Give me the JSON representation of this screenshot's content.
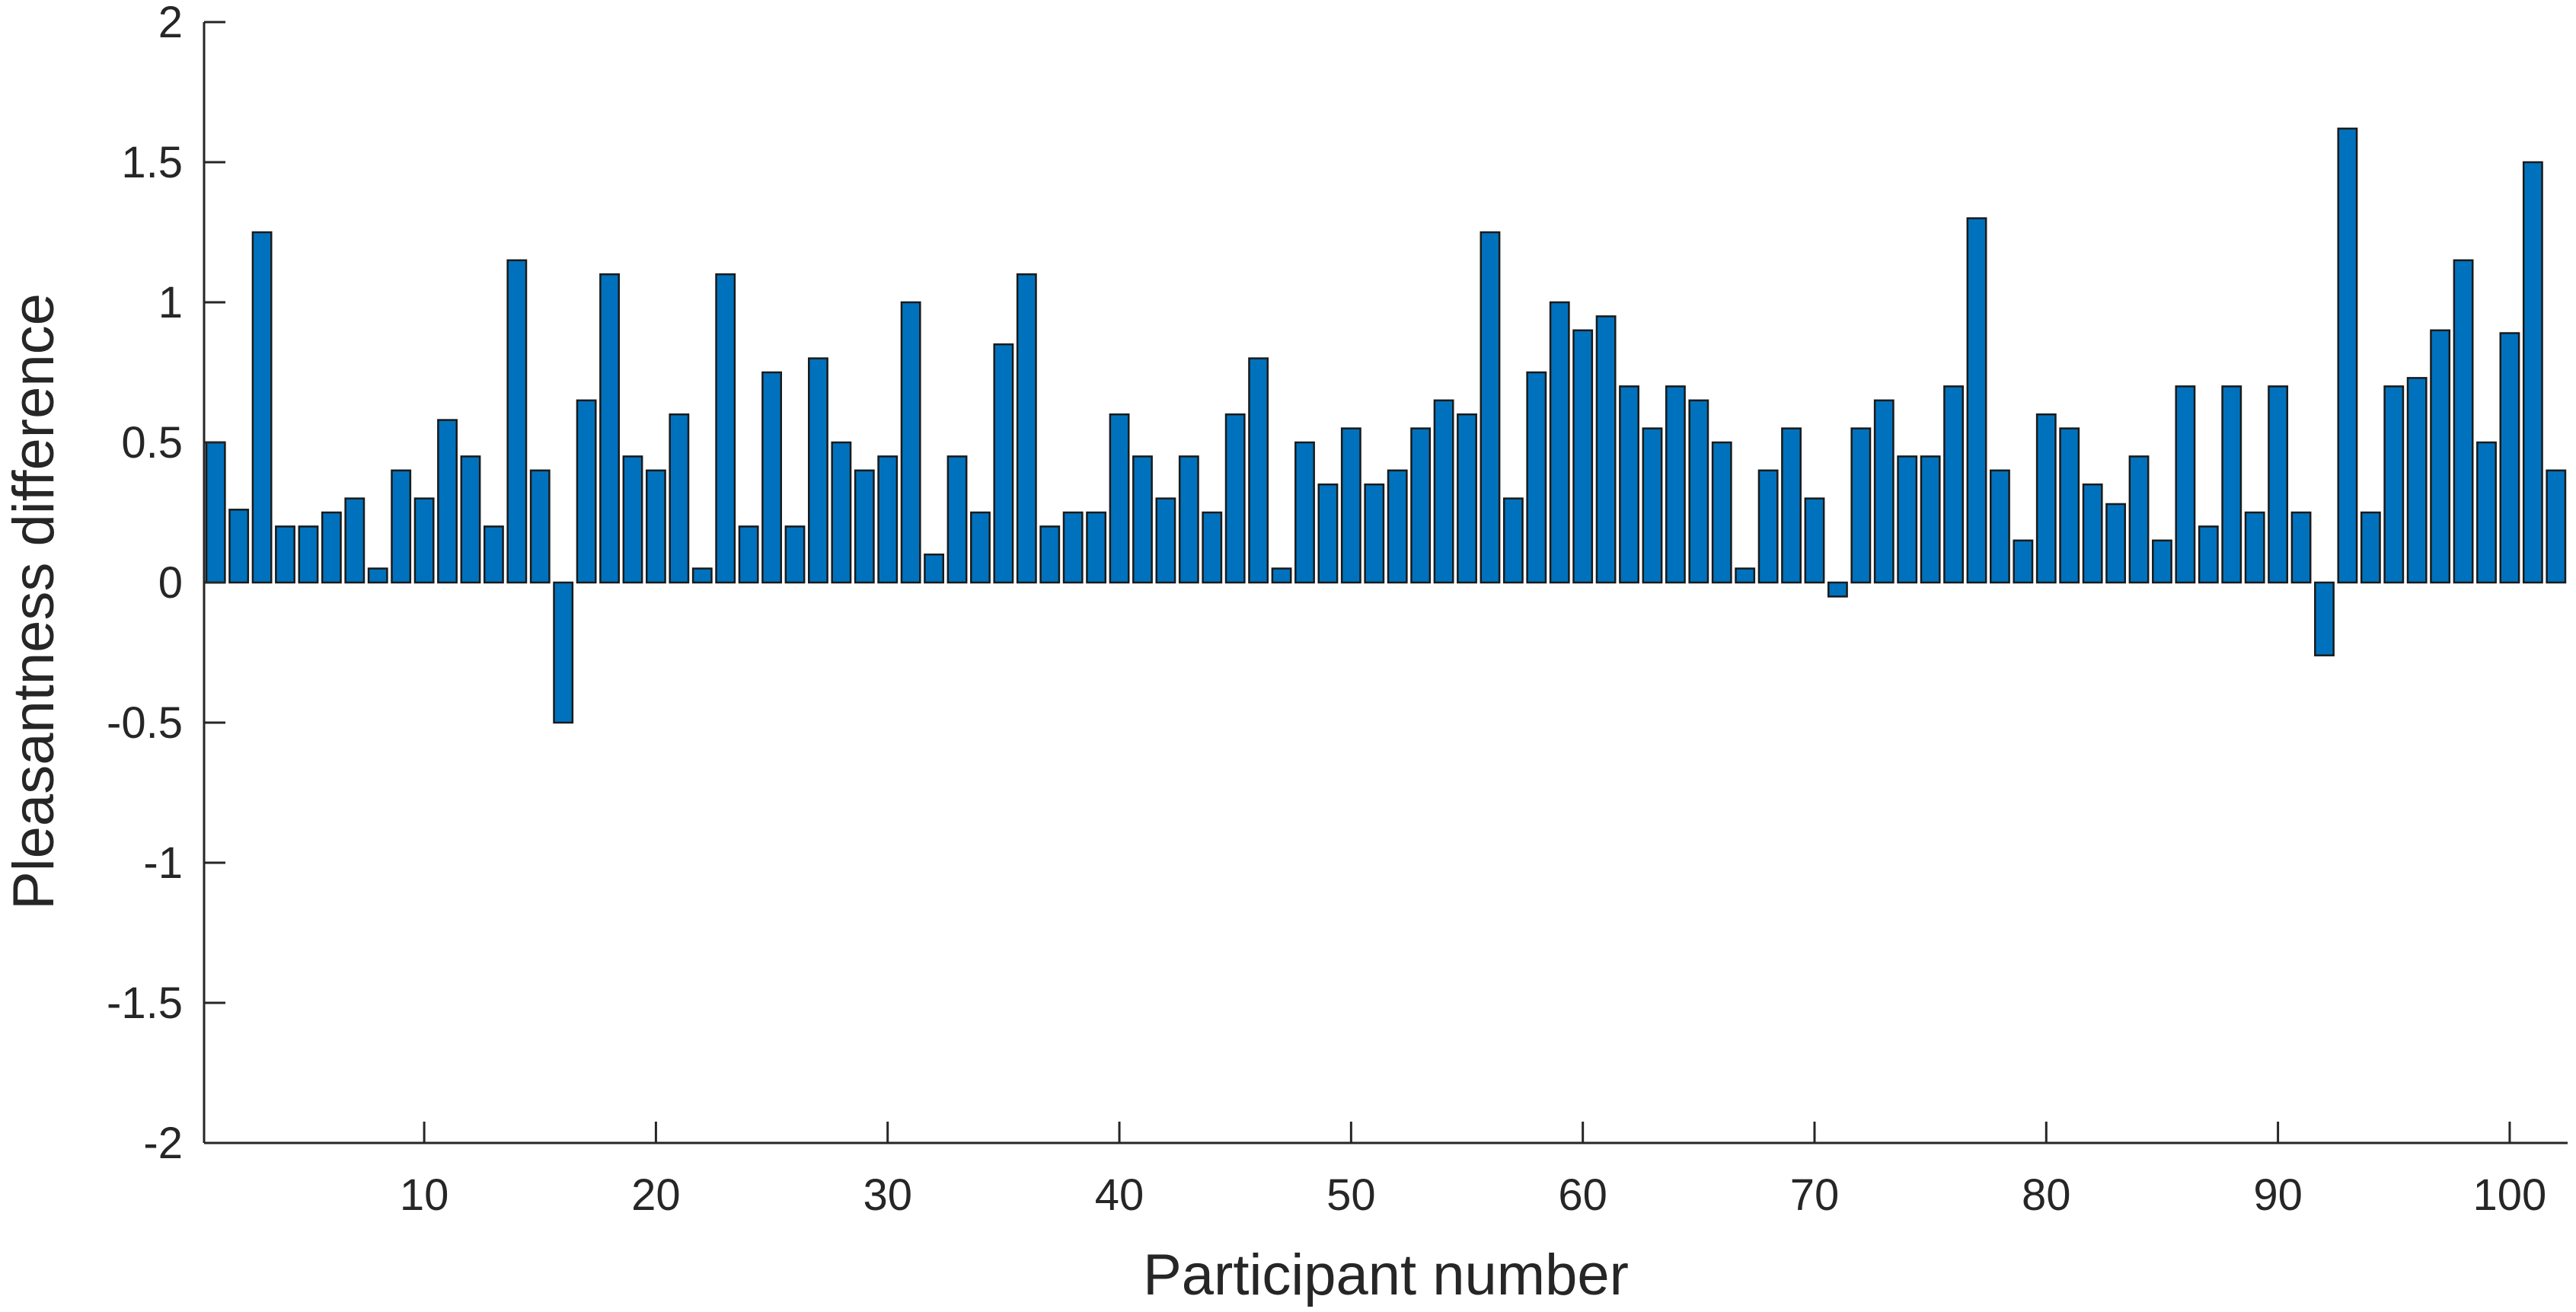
{
  "chart_data": {
    "type": "bar",
    "title": "",
    "xlabel": "Participant number",
    "ylabel": "Pleasantness difference",
    "xlim": [
      0.5,
      102.5
    ],
    "ylim": [
      -2,
      2
    ],
    "x_ticks": [
      10,
      20,
      30,
      40,
      50,
      60,
      70,
      80,
      90,
      100
    ],
    "y_ticks": [
      -2,
      -1.5,
      -1,
      -0.5,
      0,
      0.5,
      1,
      1.5,
      2
    ],
    "y_tick_labels": [
      "-2",
      "-1.5",
      "-1",
      "-0.5",
      "0",
      "0.5",
      "1",
      "1.5",
      "2"
    ],
    "grid": false,
    "legend": "none",
    "bar_color": "#0072BD",
    "x": [
      1,
      2,
      3,
      4,
      5,
      6,
      7,
      8,
      9,
      10,
      11,
      12,
      13,
      14,
      15,
      16,
      17,
      18,
      19,
      20,
      21,
      22,
      23,
      24,
      25,
      26,
      27,
      28,
      29,
      30,
      31,
      32,
      33,
      34,
      35,
      36,
      37,
      38,
      39,
      40,
      41,
      42,
      43,
      44,
      45,
      46,
      47,
      48,
      49,
      50,
      51,
      52,
      53,
      54,
      55,
      56,
      57,
      58,
      59,
      60,
      61,
      62,
      63,
      64,
      65,
      66,
      67,
      68,
      69,
      70,
      71,
      72,
      73,
      74,
      75,
      76,
      77,
      78,
      79,
      80,
      81,
      82,
      83,
      84,
      85,
      86,
      87,
      88,
      89,
      90,
      91,
      92,
      93,
      94,
      95,
      96,
      97,
      98,
      99,
      100,
      101,
      102
    ],
    "values": [
      0.5,
      0.26,
      1.25,
      0.2,
      0.2,
      0.25,
      0.3,
      0.05,
      0.4,
      0.3,
      0.58,
      0.45,
      0.2,
      1.15,
      0.4,
      -0.5,
      0.65,
      1.1,
      0.45,
      0.4,
      0.6,
      0.05,
      1.1,
      0.2,
      0.75,
      0.2,
      0.8,
      0.5,
      0.4,
      0.45,
      1.0,
      0.1,
      0.45,
      0.25,
      0.85,
      1.1,
      0.2,
      0.25,
      0.25,
      0.6,
      0.45,
      0.3,
      0.45,
      0.25,
      0.6,
      0.8,
      0.05,
      0.5,
      0.35,
      0.55,
      0.35,
      0.4,
      0.55,
      0.65,
      0.6,
      1.25,
      0.3,
      0.75,
      1.0,
      0.9,
      0.95,
      0.7,
      0.55,
      0.7,
      0.65,
      0.5,
      0.05,
      0.4,
      0.55,
      0.3,
      -0.05,
      0.55,
      0.65,
      0.45,
      0.45,
      0.7,
      1.3,
      0.4,
      0.15,
      0.6,
      0.55,
      0.35,
      0.28,
      0.45,
      0.15,
      0.7,
      0.2,
      0.7,
      0.25,
      0.7,
      0.25,
      -0.26,
      1.62,
      0.25,
      0.7,
      0.73,
      0.9,
      1.15,
      0.5,
      0.89,
      1.5,
      0.4
    ]
  }
}
